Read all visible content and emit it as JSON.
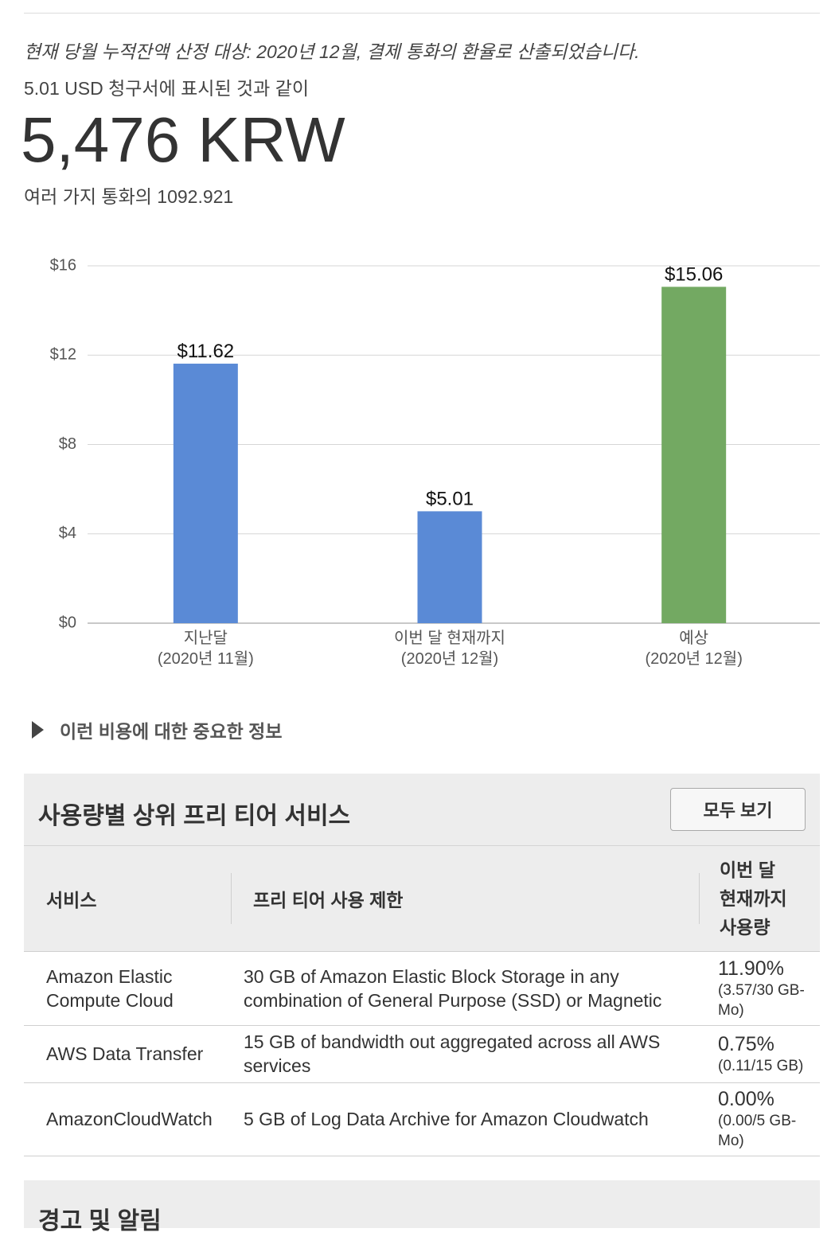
{
  "summary": {
    "currency_note": "현재 당월 누적잔액 산정 대상: 2020년 12월, 결제 통화의 환율로 산출되었습니다.",
    "usd_line": "5.01 USD 청구서에 표시된 것과 같이",
    "total_display": "5,476 KRW",
    "multi_currency_line": "여러 가지 통화의 1092.921"
  },
  "chart_data": {
    "type": "bar",
    "title": "",
    "xlabel": "",
    "ylabel": "",
    "ylim": [
      0,
      16
    ],
    "yticks": [
      0,
      4,
      8,
      12,
      16
    ],
    "ytick_labels": [
      "$0",
      "$4",
      "$8",
      "$12",
      "$16"
    ],
    "categories": [
      [
        "지난달",
        "(2020년 11월)"
      ],
      [
        "이번 달 현재까지",
        "(2020년 12월)"
      ],
      [
        "예상",
        "(2020년 12월)"
      ]
    ],
    "values": [
      11.62,
      5.01,
      15.06
    ],
    "data_labels": [
      "$11.62",
      "$5.01",
      "$15.06"
    ],
    "colors": [
      "#5a8ad6",
      "#5a8ad6",
      "#73a962"
    ],
    "grid": true,
    "legend": "none"
  },
  "info_toggle": {
    "label": "이런 비용에 대한 중요한 정보"
  },
  "free_tier": {
    "title": "사용량별 상위 프리 티어 서비스",
    "view_all_label": "모두 보기",
    "columns": {
      "service": "서비스",
      "limit": "프리 티어 사용 제한",
      "usage_lines": [
        "이번 달",
        "현재까지",
        "사용량"
      ]
    },
    "rows": [
      {
        "service": "Amazon Elastic Compute Cloud",
        "limit": "30 GB of Amazon Elastic Block Storage in any combination of General Purpose (SSD) or Magnetic",
        "percent": "11.90%",
        "detail": "(3.57/30 GB-Mo)"
      },
      {
        "service": "AWS Data Transfer",
        "limit": "15 GB of bandwidth out aggregated across all AWS services",
        "percent": "0.75%",
        "detail": "(0.11/15 GB)"
      },
      {
        "service": "AmazonCloudWatch",
        "limit": "5 GB of Log Data Archive for Amazon Cloudwatch",
        "percent": "0.00%",
        "detail": "(0.00/5 GB-Mo)"
      }
    ]
  },
  "alerts": {
    "title": "경고 및 알림"
  }
}
